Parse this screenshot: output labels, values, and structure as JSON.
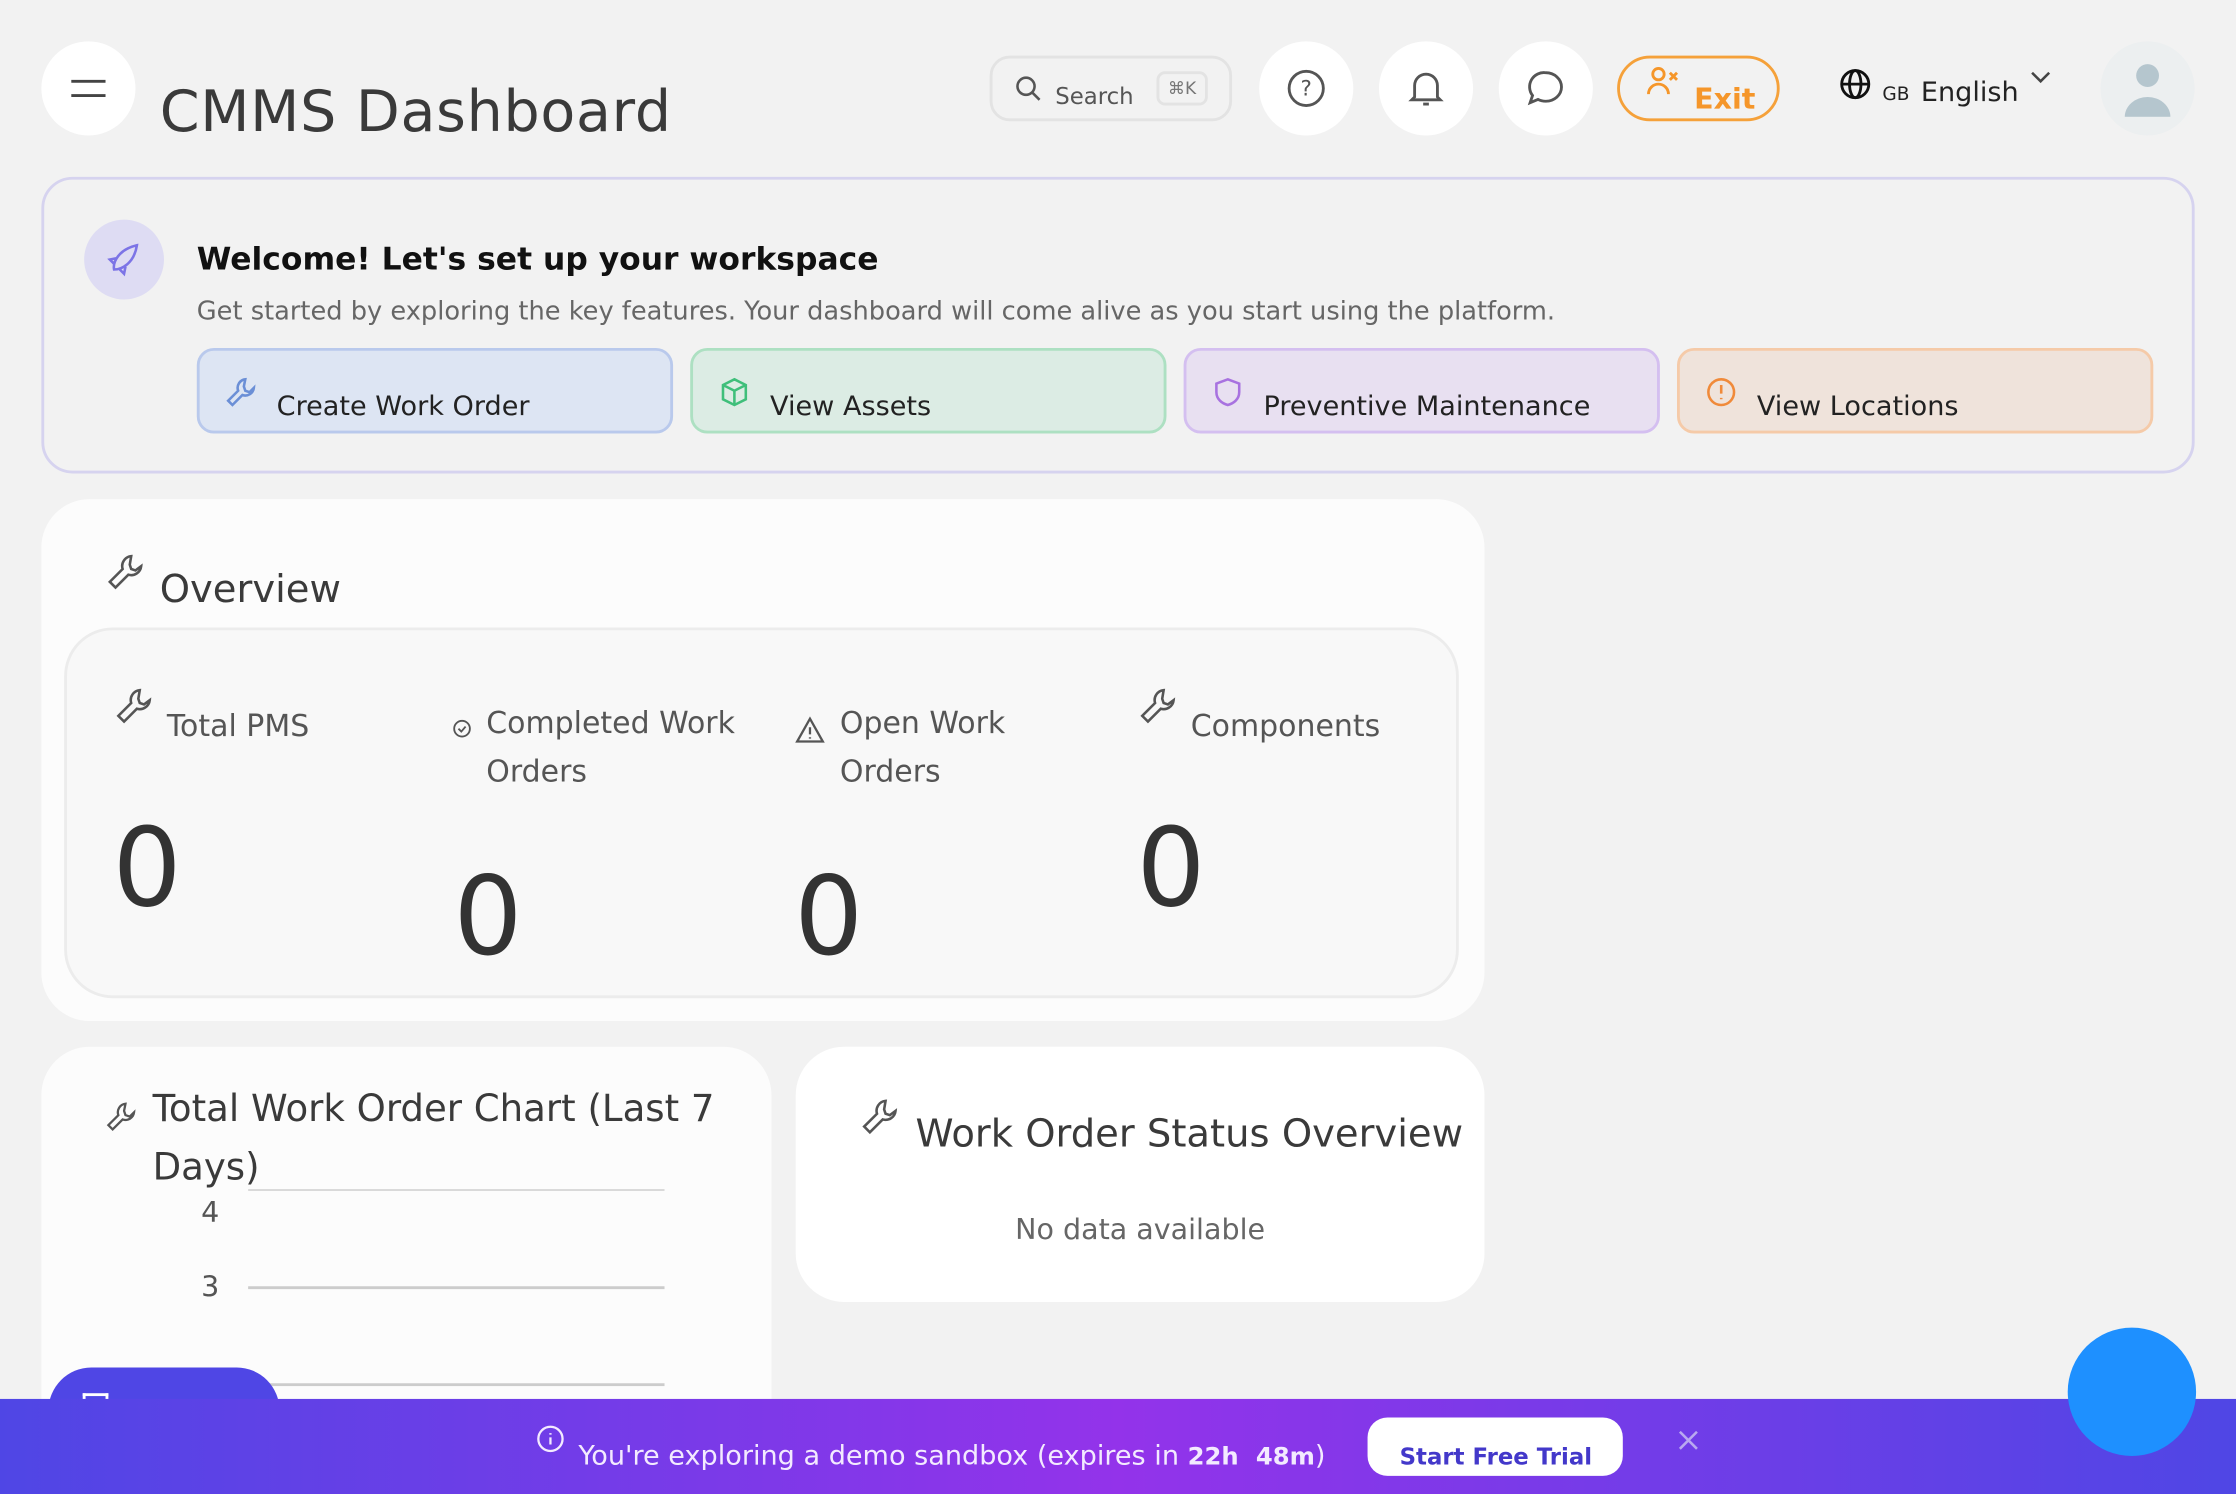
{
  "header": {
    "title": "CMMS Dashboard",
    "search_placeholder": "Search",
    "search_shortcut": "⌘K",
    "exit_label": "Exit",
    "language_code": "GB",
    "language": "English"
  },
  "welcome": {
    "title": "Welcome! Let's set up your workspace",
    "subtitle": "Get started by exploring the key features. Your dashboard will come alive as you start using the platform.",
    "actions": [
      {
        "label": "Create Work Order",
        "icon": "wrench-icon",
        "color": "#6b8fd6"
      },
      {
        "label": "View Assets",
        "icon": "box-icon",
        "color": "#3fbf7a"
      },
      {
        "label": "Preventive Maintenance",
        "icon": "shield-icon",
        "color": "#a872e0"
      },
      {
        "label": "View Locations",
        "icon": "alert-circle-icon",
        "color": "#f08a3a"
      }
    ]
  },
  "overview": {
    "title": "Overview",
    "stats": [
      {
        "label": "Total PMS",
        "value": "0"
      },
      {
        "label": "Completed Work Orders",
        "value": "0"
      },
      {
        "label": "Open Work Orders",
        "value": "0"
      },
      {
        "label": "Components",
        "value": "0"
      }
    ]
  },
  "chart_card": {
    "title": "Total Work Order Chart (Last 7 Days)"
  },
  "chart_data": {
    "type": "line",
    "title": "Total Work Order Chart (Last 7 Days)",
    "yticks": [
      "4",
      "3"
    ],
    "grid": true,
    "series": []
  },
  "status_card": {
    "title": "Work Order Status Overview",
    "empty": "No data available"
  },
  "banner": {
    "text": "You're exploring a demo sandbox (expires in",
    "hours": "22h",
    "minutes": "48m",
    "close_paren": ")",
    "cta": "Start Free Trial"
  },
  "colors": {
    "accent": "#4f46e5",
    "exit": "#f5962a",
    "fab": "#1e90ff"
  }
}
